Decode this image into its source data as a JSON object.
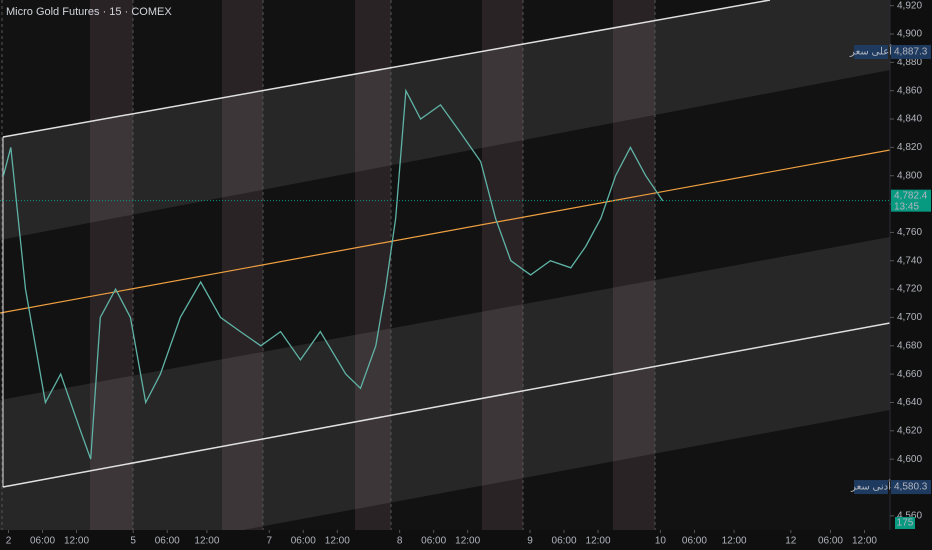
{
  "chart_data": {
    "type": "line",
    "title": "Micro Gold Futures · 15 · COMEX",
    "xlim": [
      -1.5,
      155.5
    ],
    "ylim": [
      4550,
      4924
    ],
    "xticks": [
      {
        "value": 0,
        "label": "2"
      },
      {
        "value": 6,
        "label": "06:00"
      },
      {
        "value": 12,
        "label": "12:00"
      },
      {
        "value": 22,
        "label": "5"
      },
      {
        "value": 28,
        "label": "06:00"
      },
      {
        "value": 35,
        "label": "12:00"
      },
      {
        "value": 46,
        "label": "7"
      },
      {
        "value": 52,
        "label": "06:00"
      },
      {
        "value": 58,
        "label": "12:00"
      },
      {
        "value": 69,
        "label": "8"
      },
      {
        "value": 75,
        "label": "06:00"
      },
      {
        "value": 81,
        "label": "12:00"
      },
      {
        "value": 92,
        "label": "9"
      },
      {
        "value": 98,
        "label": "06:00"
      },
      {
        "value": 104,
        "label": "12:00"
      },
      {
        "value": 115,
        "label": "10"
      },
      {
        "value": 121,
        "label": "06:00"
      },
      {
        "value": 128,
        "label": "12:00"
      },
      {
        "value": 138,
        "label": "12"
      },
      {
        "value": 145,
        "label": "06:00"
      },
      {
        "value": 151,
        "label": "12:00"
      }
    ],
    "yticks": [
      {
        "value": 4560,
        "label": "4,560"
      },
      {
        "value": 4580,
        "label": "4,580"
      },
      {
        "value": 4600,
        "label": "4,600"
      },
      {
        "value": 4620,
        "label": "4,620"
      },
      {
        "value": 4640,
        "label": "4,640"
      },
      {
        "value": 4660,
        "label": "4,660"
      },
      {
        "value": 4680,
        "label": "4,680"
      },
      {
        "value": 4700,
        "label": "4,700"
      },
      {
        "value": 4720,
        "label": "4,720"
      },
      {
        "value": 4740,
        "label": "4,740"
      },
      {
        "value": 4760,
        "label": "4,760"
      },
      {
        "value": 4780,
        "label": "4,780"
      },
      {
        "value": 4800,
        "label": "4,800"
      },
      {
        "value": 4820,
        "label": "4,820"
      },
      {
        "value": 4840,
        "label": "4,840"
      },
      {
        "value": 4860,
        "label": "4,860"
      },
      {
        "value": 4880,
        "label": "4,880"
      },
      {
        "value": 4900,
        "label": "4,900"
      },
      {
        "value": 4920,
        "label": "4,920"
      }
    ],
    "grid": false,
    "series": [
      {
        "name": "Micro Gold Futures",
        "color": "#5fb3a6",
        "x": [
          -0.9,
          0.4,
          3,
          6.5,
          9.2,
          12.7,
          14.5,
          16.2,
          18.9,
          21.5,
          24.2,
          26.8,
          30.3,
          33.9,
          37.4,
          40.9,
          44.5,
          48,
          51.5,
          55,
          59.5,
          62.1,
          64.8,
          66.5,
          68.3,
          70.1,
          72.7,
          76.2,
          79.8,
          83.3,
          85.9,
          88.6,
          92.1,
          95.6,
          99.2,
          101.8,
          104.5,
          107.1,
          109.7,
          112.4,
          115.4
        ],
        "values": [
          4800,
          4820,
          4720,
          4640,
          4660,
          4620,
          4600,
          4700,
          4720,
          4700,
          4640,
          4660,
          4700,
          4725,
          4700,
          4690,
          4680,
          4690,
          4670,
          4690,
          4660,
          4650,
          4680,
          4720,
          4770,
          4860,
          4840,
          4850,
          4830,
          4810,
          4770,
          4740,
          4730,
          4740,
          4735,
          4750,
          4770,
          4800,
          4820,
          4800,
          4782.4
        ]
      }
    ],
    "annotations": [
      {
        "value": 4887.3,
        "label": "4,887.3",
        "caption": "أعلى سعر"
      },
      {
        "value": 4782.4,
        "label": "4,782.4",
        "caption": "13:45"
      },
      {
        "value": 4580.3,
        "label": "4,580.3",
        "caption": "أدنى سعر"
      }
    ],
    "volume_label": "175"
  }
}
